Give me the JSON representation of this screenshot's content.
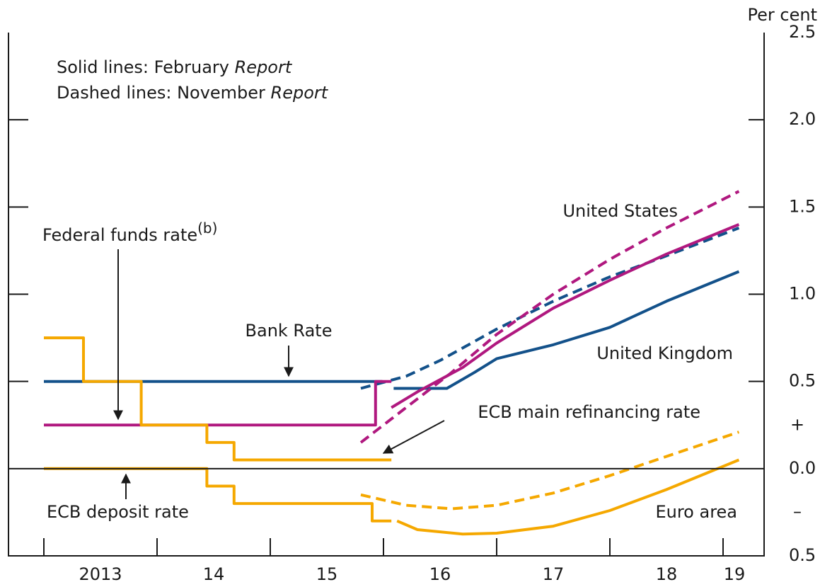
{
  "chart_data": {
    "type": "line",
    "unit_label": "Per cent",
    "notes": [
      {
        "text": "Solid lines:  February ",
        "italic": "Report"
      },
      {
        "text": "Dashed lines:  November ",
        "italic": "Report"
      }
    ],
    "annotations": [
      {
        "text": "Federal funds rate",
        "superscript": "(b)"
      },
      {
        "text": "Bank Rate"
      },
      {
        "text": "United States"
      },
      {
        "text": "United Kingdom"
      },
      {
        "text": "ECB main refinancing rate"
      },
      {
        "text": "ECB deposit rate"
      },
      {
        "text": "Euro area"
      }
    ],
    "xlim": [
      2012.6875,
      2019.3625
    ],
    "xticks": [
      2013,
      2014,
      2015,
      2016,
      2017,
      2018,
      2019
    ],
    "xlabels": [
      {
        "value": 2013.5,
        "label": "2013"
      },
      {
        "value": 2014.5,
        "label": "14"
      },
      {
        "value": 2015.5,
        "label": "15"
      },
      {
        "value": 2016.5,
        "label": "16"
      },
      {
        "value": 2017.5,
        "label": "17"
      },
      {
        "value": 2018.5,
        "label": "18"
      },
      {
        "value": 2019.1,
        "label": "19"
      }
    ],
    "ylim": [
      -0.5,
      2.5
    ],
    "yticks": [
      2.5,
      {
        "value": 2,
        "label": "2.0"
      },
      1.5,
      {
        "value": 1,
        "label": "1.0"
      },
      0.5,
      {
        "value": 0,
        "label": "0.0"
      },
      {
        "value": -0.5,
        "label": "0.5"
      }
    ],
    "ysigns": [
      {
        "value": 0.25,
        "label": "+"
      },
      {
        "value": -0.25,
        "label": "–"
      }
    ],
    "series": [
      {
        "color": "#13518a",
        "dashed": false,
        "x": [
          2013,
          2015.99,
          null,
          2016.09,
          2016.56,
          2016.8,
          2017,
          2017.5,
          2018,
          2018.5,
          2019.14
        ],
        "values": [
          0.5,
          0.5,
          null,
          0.46,
          0.46,
          0.55,
          0.63,
          0.71,
          0.81,
          0.96,
          1.13
        ]
      },
      {
        "color": "#13518a",
        "dashed": true,
        "x": [
          2015.8,
          2016.2,
          2016.5,
          2017,
          2017.5,
          2018,
          2018.5,
          2019.14
        ],
        "values": [
          0.46,
          0.53,
          0.62,
          0.8,
          0.96,
          1.1,
          1.22,
          1.38
        ]
      },
      {
        "color": "#b0187f",
        "dashed": false,
        "x": [
          2013,
          2015.93,
          2015.93,
          2016.07,
          null,
          2016.07,
          2016.3,
          2016.7,
          2017,
          2017.5,
          2018,
          2018.5,
          2019.14
        ],
        "values": [
          0.25,
          0.25,
          0.5,
          0.5,
          null,
          0.35,
          0.44,
          0.58,
          0.72,
          0.92,
          1.08,
          1.23,
          1.4
        ]
      },
      {
        "color": "#b0187f",
        "dashed": true,
        "x": [
          2015.8,
          2016.2,
          2016.6,
          2017,
          2017.5,
          2018,
          2018.5,
          2019.14
        ],
        "values": [
          0.15,
          0.35,
          0.55,
          0.77,
          1.0,
          1.2,
          1.38,
          1.59
        ]
      },
      {
        "color": "#f5a800",
        "dashed": false,
        "x": [
          2013,
          2013.35,
          2013.35,
          2013.86,
          2013.86,
          2014.44,
          2014.44,
          2014.68,
          2014.68,
          2016.07
        ],
        "values": [
          0.75,
          0.75,
          0.5,
          0.5,
          0.25,
          0.25,
          0.15,
          0.15,
          0.05,
          0.05
        ]
      },
      {
        "color": "#f5a800",
        "dashed": false,
        "x": [
          2013,
          2014.44,
          2014.44,
          2014.68,
          2014.68,
          2015.9,
          2015.9,
          2016.07,
          null,
          2016.12,
          2016.3,
          2016.7,
          2017,
          2017.5,
          2018,
          2018.5,
          2019.14
        ],
        "values": [
          0,
          0,
          -0.1,
          -0.1,
          -0.2,
          -0.2,
          -0.3,
          -0.3,
          null,
          -0.3,
          -0.35,
          -0.375,
          -0.37,
          -0.33,
          -0.24,
          -0.12,
          0.05
        ]
      },
      {
        "color": "#f5a800",
        "dashed": true,
        "x": [
          2015.8,
          2016.2,
          2016.6,
          2017,
          2017.5,
          2018,
          2018.5,
          2019.14
        ],
        "values": [
          -0.15,
          -0.21,
          -0.23,
          -0.21,
          -0.14,
          -0.04,
          0.07,
          0.21
        ]
      }
    ]
  }
}
